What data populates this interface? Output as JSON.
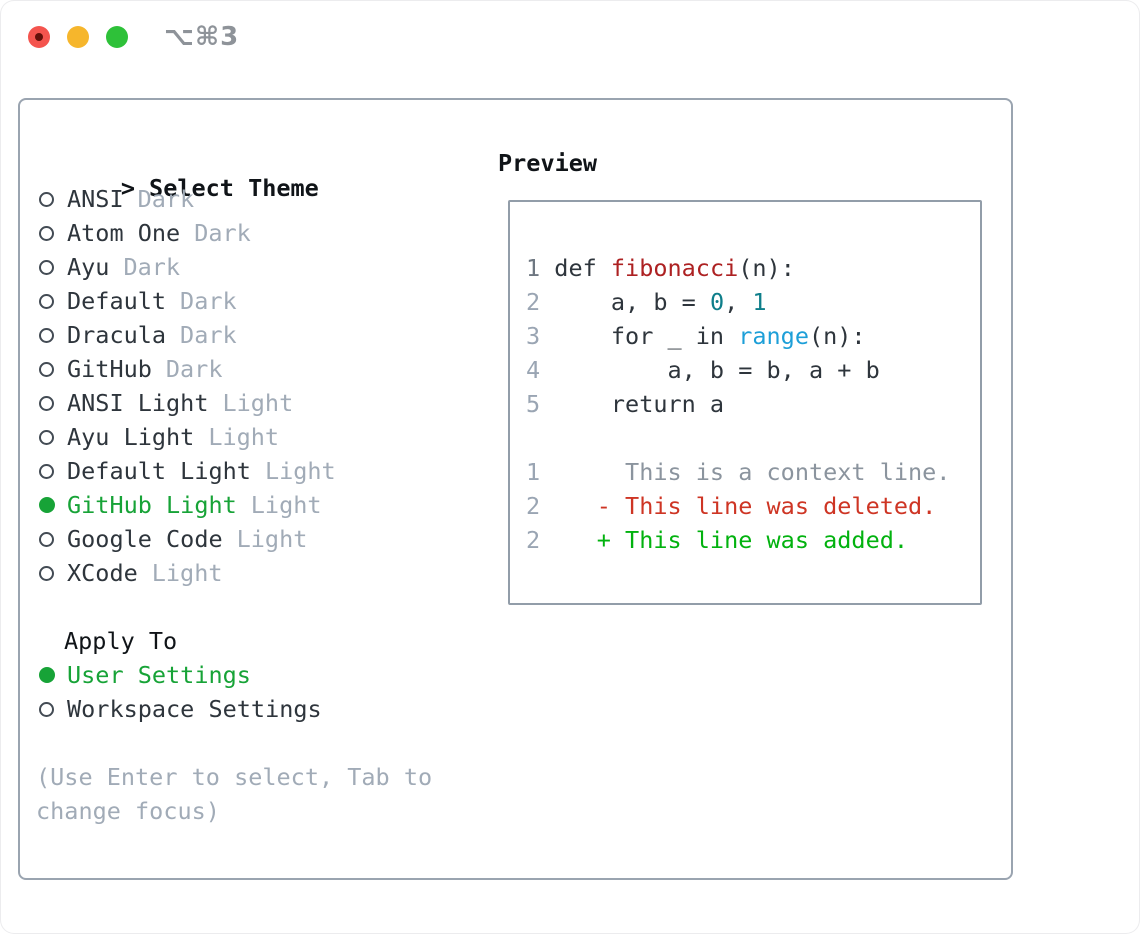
{
  "window": {
    "title": "⌥⌘3",
    "traffic_lights": [
      "close",
      "minimize",
      "zoom"
    ]
  },
  "picker": {
    "prompt": ">",
    "title": "Select Theme",
    "themes": [
      {
        "name": "ANSI",
        "variant": "Dark",
        "selected": false
      },
      {
        "name": "Atom One",
        "variant": "Dark",
        "selected": false
      },
      {
        "name": "Ayu",
        "variant": "Dark",
        "selected": false
      },
      {
        "name": "Default",
        "variant": "Dark",
        "selected": false
      },
      {
        "name": "Dracula",
        "variant": "Dark",
        "selected": false
      },
      {
        "name": "GitHub",
        "variant": "Dark",
        "selected": false
      },
      {
        "name": "ANSI Light",
        "variant": "Light",
        "selected": false
      },
      {
        "name": "Ayu Light",
        "variant": "Light",
        "selected": false
      },
      {
        "name": "Default Light",
        "variant": "Light",
        "selected": false
      },
      {
        "name": "GitHub Light",
        "variant": "Light",
        "selected": true
      },
      {
        "name": "Google Code",
        "variant": "Light",
        "selected": false
      },
      {
        "name": "XCode",
        "variant": "Light",
        "selected": false
      }
    ],
    "apply_title": "Apply To",
    "apply_options": [
      {
        "label": "User Settings",
        "selected": true
      },
      {
        "label": "Workspace Settings",
        "selected": false
      }
    ],
    "hint": "(Use Enter to select, Tab to change focus)"
  },
  "preview": {
    "title": "Preview",
    "lines": [
      [
        {
          "t": "1",
          "c": "ln1"
        },
        {
          "t": " def ",
          "c": "pl"
        },
        {
          "t": "fibonacci",
          "c": "fn"
        },
        {
          "t": "(n):",
          "c": "pl"
        }
      ],
      [
        {
          "t": "2",
          "c": "ln"
        },
        {
          "t": "     a, b = ",
          "c": "pl"
        },
        {
          "t": "0",
          "c": "nm"
        },
        {
          "t": ", ",
          "c": "pl"
        },
        {
          "t": "1",
          "c": "nm"
        }
      ],
      [
        {
          "t": "3",
          "c": "ln"
        },
        {
          "t": "     for _ in ",
          "c": "pl"
        },
        {
          "t": "range",
          "c": "bi"
        },
        {
          "t": "(n):",
          "c": "pl"
        }
      ],
      [
        {
          "t": "4",
          "c": "ln"
        },
        {
          "t": "         a, b = b, a + b",
          "c": "pl"
        }
      ],
      [
        {
          "t": "5",
          "c": "ln"
        },
        {
          "t": "     return a",
          "c": "pl"
        }
      ],
      [],
      [
        {
          "t": "1",
          "c": "ln"
        },
        {
          "t": "      This is a context line.",
          "c": "cx"
        }
      ],
      [
        {
          "t": "2",
          "c": "ln"
        },
        {
          "t": "    - This line was deleted.",
          "c": "de"
        }
      ],
      [
        {
          "t": "2",
          "c": "ln"
        },
        {
          "t": "    + This line was added.",
          "c": "ad"
        }
      ]
    ]
  },
  "colors": {
    "accent_green": "#17a337",
    "added_green": "#02b20f",
    "deleted_red": "#ce3524",
    "func_red": "#ad2122",
    "num_teal": "#0e7e8a",
    "builtin_blue": "#1d9fd8",
    "linenum_gray": "#9aa5b3",
    "linenum_strong": "#6e7781",
    "context_gray": "#8b949e",
    "text_dark": "#2e353c",
    "text_black": "#101418",
    "muted_gray": "#a1abb7",
    "radio_outline": "#434b54",
    "border_gray": "#9aa4b0",
    "preview_border": "#929da9",
    "title_gray": "#8e9399",
    "light_red": "#f4544e",
    "light_red_dot": "#63100a",
    "light_yellow": "#f6b62c",
    "light_green": "#2ec139"
  }
}
